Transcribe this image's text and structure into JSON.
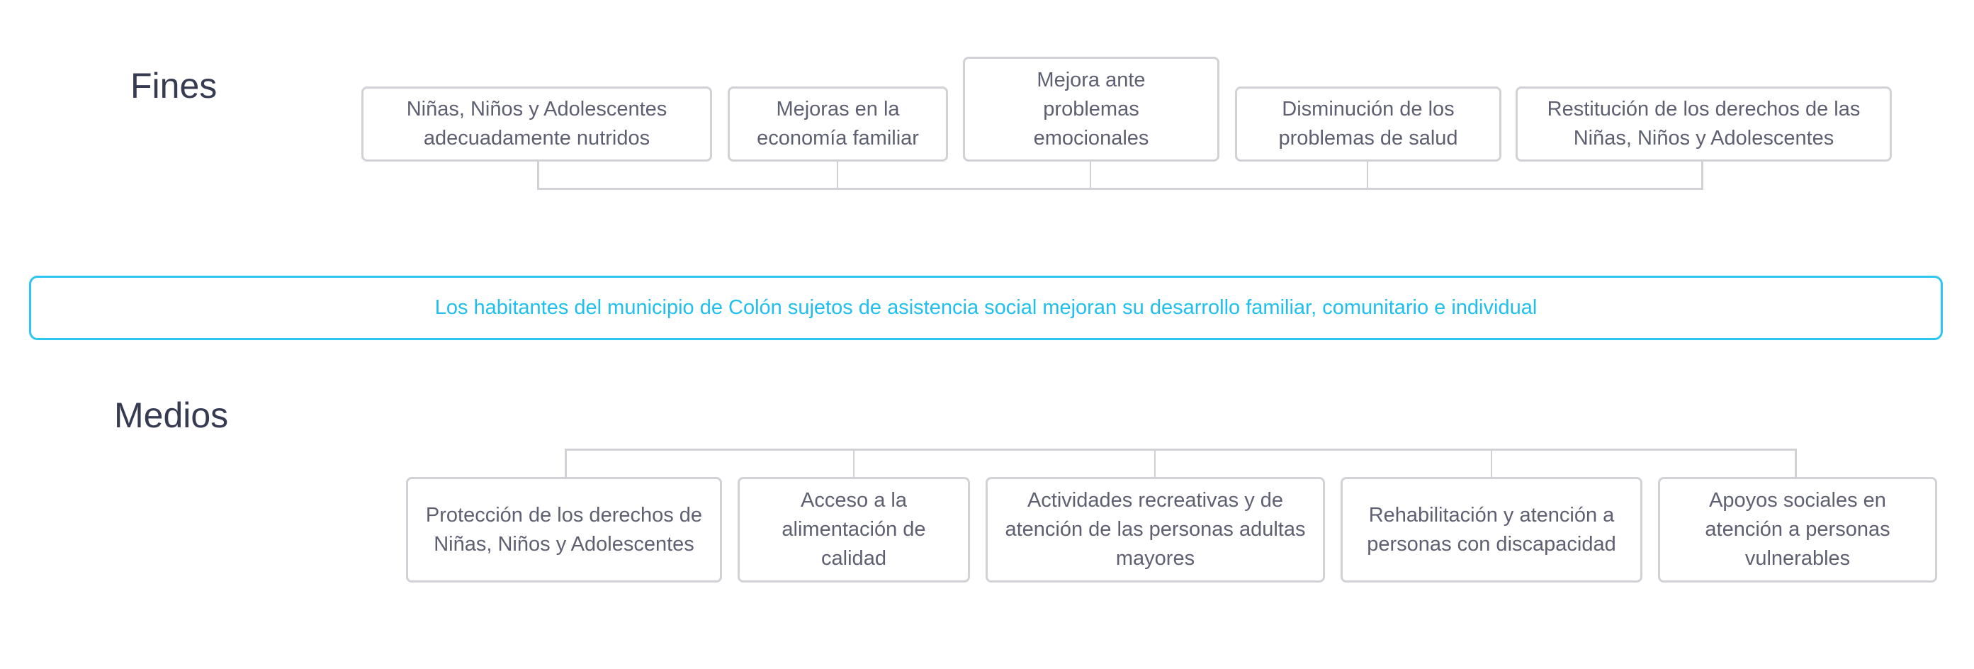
{
  "fines": {
    "label": "Fines",
    "items": [
      "Niñas, Niños y Adolescentes adecuadamente nutridos",
      "Mejoras en la economía familiar",
      "Mejora ante problemas emocionales",
      "Disminución de los problemas de salud",
      "Restitución de los derechos de las Niñas, Niños y Adolescentes"
    ]
  },
  "proposito": "Los habitantes del municipio de Colón sujetos de asistencia social mejoran su desarrollo familiar, comunitario e individual",
  "medios": {
    "label": "Medios",
    "items": [
      "Protección de los derechos de Niñas, Niños y Adolescentes",
      "Acceso a la alimentación de calidad",
      "Actividades recreativas y de atención de las personas adultas mayores",
      "Rehabilitación y atención a personas con discapacidad",
      "Apoyos sociales en atención a personas vulnerables"
    ]
  },
  "colors": {
    "border": "#d2d2d6",
    "accent": "#2ec5ef",
    "text": "#5e6072",
    "heading": "#363b52"
  }
}
